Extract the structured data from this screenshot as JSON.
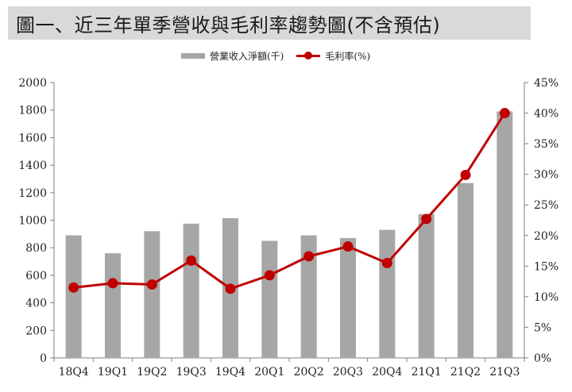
{
  "header": {
    "title": "圖一、近三年單季營收與毛利率趨勢圖(不含預估)"
  },
  "legend": {
    "bar_label": "營業收入淨額(千)",
    "line_label": "毛利率(%)"
  },
  "colors": {
    "bar": "#a6a6a6",
    "line": "#c00000",
    "axis": "#7f7f7f"
  },
  "chart_data": {
    "type": "bar",
    "title": "圖一、近三年單季營收與毛利率趨勢圖(不含預估)",
    "categories": [
      "18Q4",
      "19Q1",
      "19Q2",
      "19Q3",
      "19Q4",
      "20Q1",
      "20Q2",
      "20Q3",
      "20Q4",
      "21Q1",
      "21Q2",
      "21Q3"
    ],
    "series": [
      {
        "name": "營業收入淨額(千)",
        "type": "bar",
        "axis": "left",
        "values": [
          890,
          760,
          920,
          975,
          1015,
          850,
          890,
          870,
          930,
          1045,
          1270,
          1790
        ]
      },
      {
        "name": "毛利率(%)",
        "type": "line",
        "axis": "right",
        "values": [
          11.5,
          12.2,
          12.0,
          15.9,
          11.3,
          13.5,
          16.6,
          18.2,
          15.5,
          22.7,
          29.9,
          40.0
        ]
      }
    ],
    "y_left": {
      "min": 0,
      "max": 2000,
      "step": 200,
      "ticks": [
        "0",
        "200",
        "400",
        "600",
        "800",
        "1000",
        "1200",
        "1400",
        "1600",
        "1800",
        "2000"
      ]
    },
    "y_right": {
      "min": 0,
      "max": 45,
      "step": 5,
      "ticks": [
        "0%",
        "5%",
        "10%",
        "15%",
        "20%",
        "25%",
        "30%",
        "35%",
        "40%",
        "45%"
      ]
    },
    "grid": false,
    "legend_position": "top-center"
  }
}
